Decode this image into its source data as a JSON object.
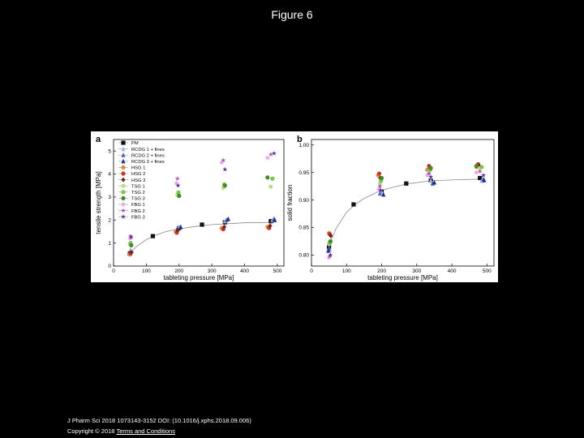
{
  "page": {
    "title": "Figure 6",
    "citation": "J Pharm Sci 2018 1073143-3152 DOI: (10.1016/j.xphs.2018.09.006)",
    "copyright_prefix": "Copyright © 2018 ",
    "terms_link": "Terms and Conditions"
  },
  "series_meta": [
    {
      "name": "PM",
      "color": "#111111",
      "marker": "square"
    },
    {
      "name": "RCDG 1 + fines",
      "color": "#9fb8d8",
      "marker": "triangle"
    },
    {
      "name": "RCDG 2 + fines",
      "color": "#4a5fc8",
      "marker": "triangle"
    },
    {
      "name": "RCDG 3 + fines",
      "color": "#1c2b8c",
      "marker": "triangle"
    },
    {
      "name": "HSG 1",
      "color": "#e08a3c",
      "marker": "circle"
    },
    {
      "name": "HSG 2",
      "color": "#c0392b",
      "marker": "circle"
    },
    {
      "name": "HSG 3",
      "color": "#7a1e1e",
      "marker": "diamond"
    },
    {
      "name": "TSG 1",
      "color": "#b8e08c",
      "marker": "circle"
    },
    {
      "name": "TSG 2",
      "color": "#7cc24a",
      "marker": "circle"
    },
    {
      "name": "TSG 3",
      "color": "#3e8a2a",
      "marker": "circle"
    },
    {
      "name": "FBG 1",
      "color": "#e6a8e8",
      "marker": "cross"
    },
    {
      "name": "FBG 2",
      "color": "#b04ab8",
      "marker": "star"
    },
    {
      "name": "FBG 3",
      "color": "#5a2a9a",
      "marker": "star"
    }
  ],
  "chart_data": [
    {
      "panel": "a",
      "type": "scatter",
      "xlabel": "tableting pressure [MPa]",
      "ylabel": "tensile strength [MPa]",
      "xlim": [
        0,
        520
      ],
      "ylim": [
        0,
        5.5
      ],
      "xticks": [
        0,
        100,
        200,
        300,
        400,
        500
      ],
      "yticks": [
        0,
        1,
        2,
        3,
        4,
        5
      ],
      "legend_position": "top-left",
      "fit_line": [
        [
          48,
          0.55
        ],
        [
          70,
          0.85
        ],
        [
          100,
          1.15
        ],
        [
          130,
          1.35
        ],
        [
          160,
          1.5
        ],
        [
          200,
          1.62
        ],
        [
          250,
          1.72
        ],
        [
          300,
          1.8
        ],
        [
          400,
          1.88
        ],
        [
          490,
          1.9
        ]
      ],
      "series": [
        {
          "name": "PM",
          "points": [
            [
              50,
              0.55
            ],
            [
              120,
              1.3
            ],
            [
              200,
              1.65
            ],
            [
              270,
              1.8
            ],
            [
              340,
              1.9
            ],
            [
              480,
              1.95
            ]
          ]
        },
        {
          "name": "RCDG 1 + fines",
          "points": [
            [
              52,
              0.7
            ],
            [
              200,
              1.7
            ],
            [
              340,
              1.95
            ],
            [
              485,
              2.0
            ]
          ]
        },
        {
          "name": "RCDG 2 + fines",
          "points": [
            [
              50,
              0.6
            ],
            [
              195,
              1.65
            ],
            [
              345,
              2.0
            ],
            [
              490,
              2.05
            ]
          ]
        },
        {
          "name": "RCDG 3 + fines",
          "points": [
            [
              48,
              0.55
            ],
            [
              205,
              1.7
            ],
            [
              350,
              2.05
            ],
            [
              492,
              2.0
            ]
          ]
        },
        {
          "name": "HSG 1",
          "points": [
            [
              50,
              0.5
            ],
            [
              190,
              1.5
            ],
            [
              330,
              1.65
            ],
            [
              470,
              1.7
            ]
          ]
        },
        {
          "name": "HSG 2",
          "points": [
            [
              52,
              0.55
            ],
            [
              193,
              1.45
            ],
            [
              335,
              1.6
            ],
            [
              475,
              1.65
            ]
          ]
        },
        {
          "name": "HSG 3",
          "points": [
            [
              55,
              0.6
            ],
            [
              196,
              1.55
            ],
            [
              338,
              1.7
            ],
            [
              478,
              1.75
            ]
          ]
        },
        {
          "name": "TSG 1",
          "points": [
            [
              50,
              0.95
            ],
            [
              195,
              3.1
            ],
            [
              335,
              3.4
            ],
            [
              480,
              3.45
            ]
          ]
        },
        {
          "name": "TSG 2",
          "points": [
            [
              52,
              1.0
            ],
            [
              198,
              3.2
            ],
            [
              338,
              3.55
            ],
            [
              485,
              3.8
            ]
          ]
        },
        {
          "name": "TSG 3",
          "points": [
            [
              54,
              0.9
            ],
            [
              200,
              3.05
            ],
            [
              340,
              3.5
            ],
            [
              470,
              3.85
            ]
          ]
        },
        {
          "name": "FBG 1",
          "points": [
            [
              50,
              1.2
            ],
            [
              192,
              3.6
            ],
            [
              330,
              4.5
            ],
            [
              470,
              4.7
            ]
          ]
        },
        {
          "name": "FBG 2",
          "points": [
            [
              52,
              1.3
            ],
            [
              195,
              3.8
            ],
            [
              335,
              4.6
            ],
            [
              480,
              4.85
            ]
          ]
        },
        {
          "name": "FBG 3",
          "points": [
            [
              54,
              1.25
            ],
            [
              197,
              3.5
            ],
            [
              340,
              4.2
            ],
            [
              490,
              4.9
            ]
          ]
        }
      ]
    },
    {
      "panel": "b",
      "type": "scatter",
      "xlabel": "tableting pressure [MPa]",
      "ylabel": "solid fraction",
      "xlim": [
        0,
        520
      ],
      "ylim": [
        0.78,
        1.01
      ],
      "xticks": [
        0,
        100,
        200,
        300,
        400,
        500
      ],
      "yticks": [
        0.8,
        0.85,
        0.9,
        0.95,
        1.0
      ],
      "yticklabels": [
        "0.80",
        "0.85",
        "0.90",
        "0.95",
        "1.00"
      ],
      "fit_line": [
        [
          48,
          0.815
        ],
        [
          70,
          0.848
        ],
        [
          100,
          0.878
        ],
        [
          125,
          0.892
        ],
        [
          150,
          0.903
        ],
        [
          200,
          0.918
        ],
        [
          270,
          0.929
        ],
        [
          340,
          0.935
        ],
        [
          420,
          0.937
        ],
        [
          490,
          0.938
        ]
      ],
      "series": [
        {
          "name": "PM",
          "points": [
            [
              50,
              0.815
            ],
            [
              120,
              0.892
            ],
            [
              200,
              0.915
            ],
            [
              270,
              0.93
            ],
            [
              340,
              0.935
            ],
            [
              480,
              0.94
            ]
          ]
        },
        {
          "name": "RCDG 1 + fines",
          "points": [
            [
              52,
              0.81
            ],
            [
              200,
              0.915
            ],
            [
              340,
              0.935
            ],
            [
              485,
              0.935
            ]
          ]
        },
        {
          "name": "RCDG 2 + fines",
          "points": [
            [
              50,
              0.812
            ],
            [
              195,
              0.912
            ],
            [
              345,
              0.93
            ],
            [
              490,
              0.938
            ]
          ]
        },
        {
          "name": "RCDG 3 + fines",
          "points": [
            [
              48,
              0.808
            ],
            [
              205,
              0.91
            ],
            [
              350,
              0.932
            ],
            [
              492,
              0.936
            ]
          ]
        },
        {
          "name": "HSG 1",
          "points": [
            [
              50,
              0.84
            ],
            [
              190,
              0.945
            ],
            [
              330,
              0.955
            ],
            [
              470,
              0.96
            ]
          ]
        },
        {
          "name": "HSG 2",
          "points": [
            [
              52,
              0.838
            ],
            [
              193,
              0.948
            ],
            [
              335,
              0.962
            ],
            [
              475,
              0.965
            ]
          ]
        },
        {
          "name": "HSG 3",
          "points": [
            [
              55,
              0.835
            ],
            [
              196,
              0.94
            ],
            [
              338,
              0.958
            ],
            [
              478,
              0.962
            ]
          ]
        },
        {
          "name": "TSG 1",
          "points": [
            [
              50,
              0.82
            ],
            [
              195,
              0.93
            ],
            [
              335,
              0.95
            ],
            [
              480,
              0.958
            ]
          ]
        },
        {
          "name": "TSG 2",
          "points": [
            [
              52,
              0.822
            ],
            [
              198,
              0.935
            ],
            [
              338,
              0.955
            ],
            [
              485,
              0.96
            ]
          ]
        },
        {
          "name": "TSG 3",
          "points": [
            [
              54,
              0.825
            ],
            [
              200,
              0.94
            ],
            [
              340,
              0.958
            ],
            [
              470,
              0.962
            ]
          ]
        },
        {
          "name": "FBG 1",
          "points": [
            [
              50,
              0.795
            ],
            [
              192,
              0.92
            ],
            [
              330,
              0.945
            ],
            [
              470,
              0.95
            ]
          ]
        },
        {
          "name": "FBG 2",
          "points": [
            [
              52,
              0.798
            ],
            [
              195,
              0.925
            ],
            [
              335,
              0.948
            ],
            [
              480,
              0.952
            ]
          ]
        },
        {
          "name": "FBG 3",
          "points": [
            [
              54,
              0.8
            ],
            [
              197,
              0.918
            ],
            [
              340,
              0.942
            ],
            [
              490,
              0.945
            ]
          ]
        }
      ]
    }
  ]
}
